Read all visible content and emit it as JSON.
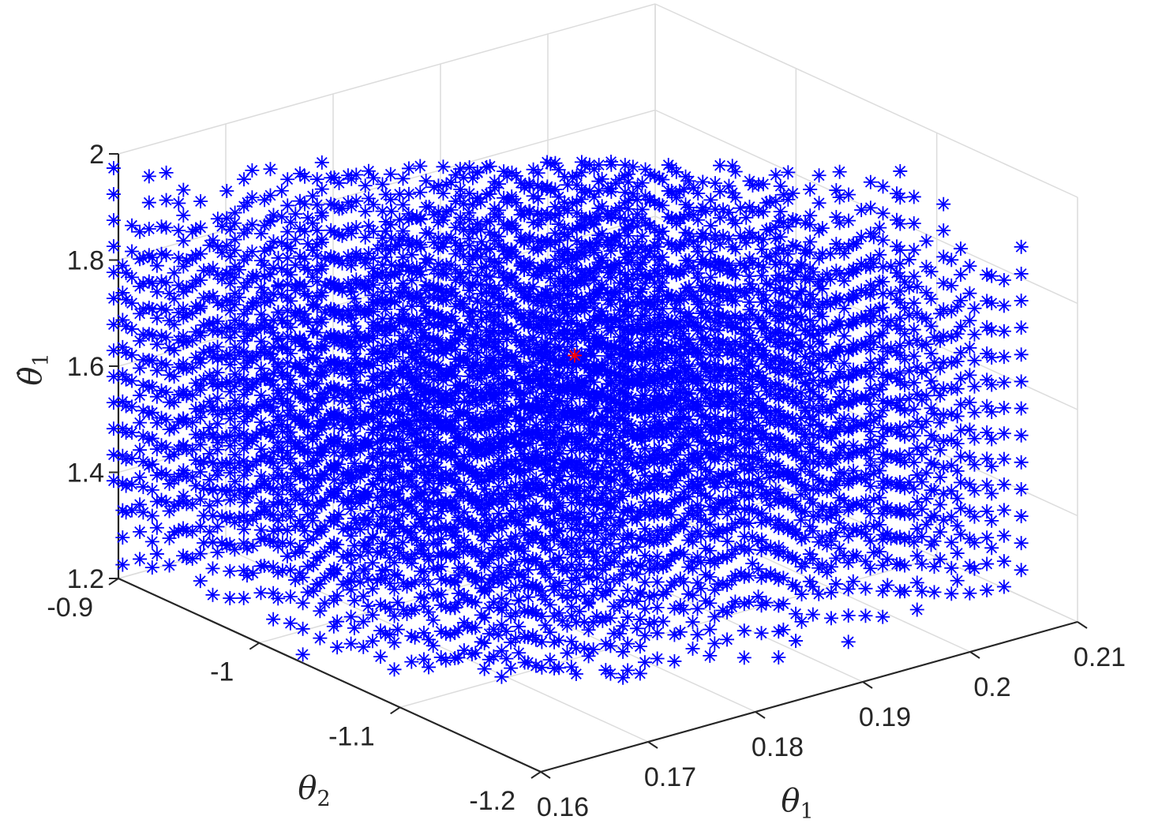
{
  "chart_data": {
    "type": "scatter",
    "projection": "3d",
    "title": "",
    "grid": true,
    "marker": "asterisk",
    "colors": {
      "main": "#0000FF",
      "highlight": "#FF0000",
      "axis": "#262626",
      "grid": "#DCDCDC"
    },
    "axes": {
      "x": {
        "label_symbol": "θ",
        "label_subscript": "1",
        "range": [
          0.16,
          0.21
        ],
        "ticks": [
          0.16,
          0.17,
          0.18,
          0.19,
          0.2,
          0.21
        ],
        "tick_labels": [
          "0.16",
          "0.17",
          "0.18",
          "0.19",
          "0.2",
          "0.21"
        ]
      },
      "y": {
        "label_symbol": "θ",
        "label_subscript": "2",
        "range": [
          -1.2,
          -0.9
        ],
        "ticks": [
          -1.2,
          -1.1,
          -1.0,
          -0.9
        ],
        "tick_labels": [
          "-1.2",
          "-1.1",
          "-1",
          "-0.9"
        ]
      },
      "z": {
        "label_symbol": "θ̇",
        "label_subscript": "1",
        "range": [
          1.2,
          2.0
        ],
        "ticks": [
          1.2,
          1.4,
          1.6,
          1.8,
          2.0
        ],
        "tick_labels": [
          "1.2",
          "1.4",
          "1.6",
          "1.8",
          "2"
        ]
      }
    },
    "series": [
      {
        "color": "#0000FF",
        "theta1_columns": [
          0.16,
          0.1616,
          0.1632,
          0.1648,
          0.1665,
          0.1681,
          0.1697,
          0.1713,
          0.1729,
          0.1745,
          0.1761,
          0.1777,
          0.1794,
          0.181,
          0.1826,
          0.1842,
          0.1858,
          0.1874,
          0.189,
          0.1906,
          0.1923,
          0.1939,
          0.1955,
          0.1971,
          0.1987,
          0.2003,
          0.2019,
          0.2035,
          0.2052,
          0.2068,
          0.2084,
          0.21
        ],
        "theta2_rows": [
          -1.16,
          -1.139,
          -1.117,
          -1.096,
          -1.074,
          -1.053,
          -1.031,
          -1.01,
          -0.989,
          -0.967,
          -0.946,
          -0.924,
          -0.903,
          -0.881,
          -0.86
        ],
        "thetadot1_range": [
          1.2,
          1.9
        ],
        "note_values": "approx. uniform grid of about 1700 points; θ̇1 values at each (θ1, θ2) column span roughly 1.2 to 1.9"
      },
      {
        "color": "#FF0000",
        "points": [
          {
            "theta1": 0.2025,
            "theta2": -0.9,
            "thetadot1": 1.38
          }
        ]
      }
    ]
  }
}
